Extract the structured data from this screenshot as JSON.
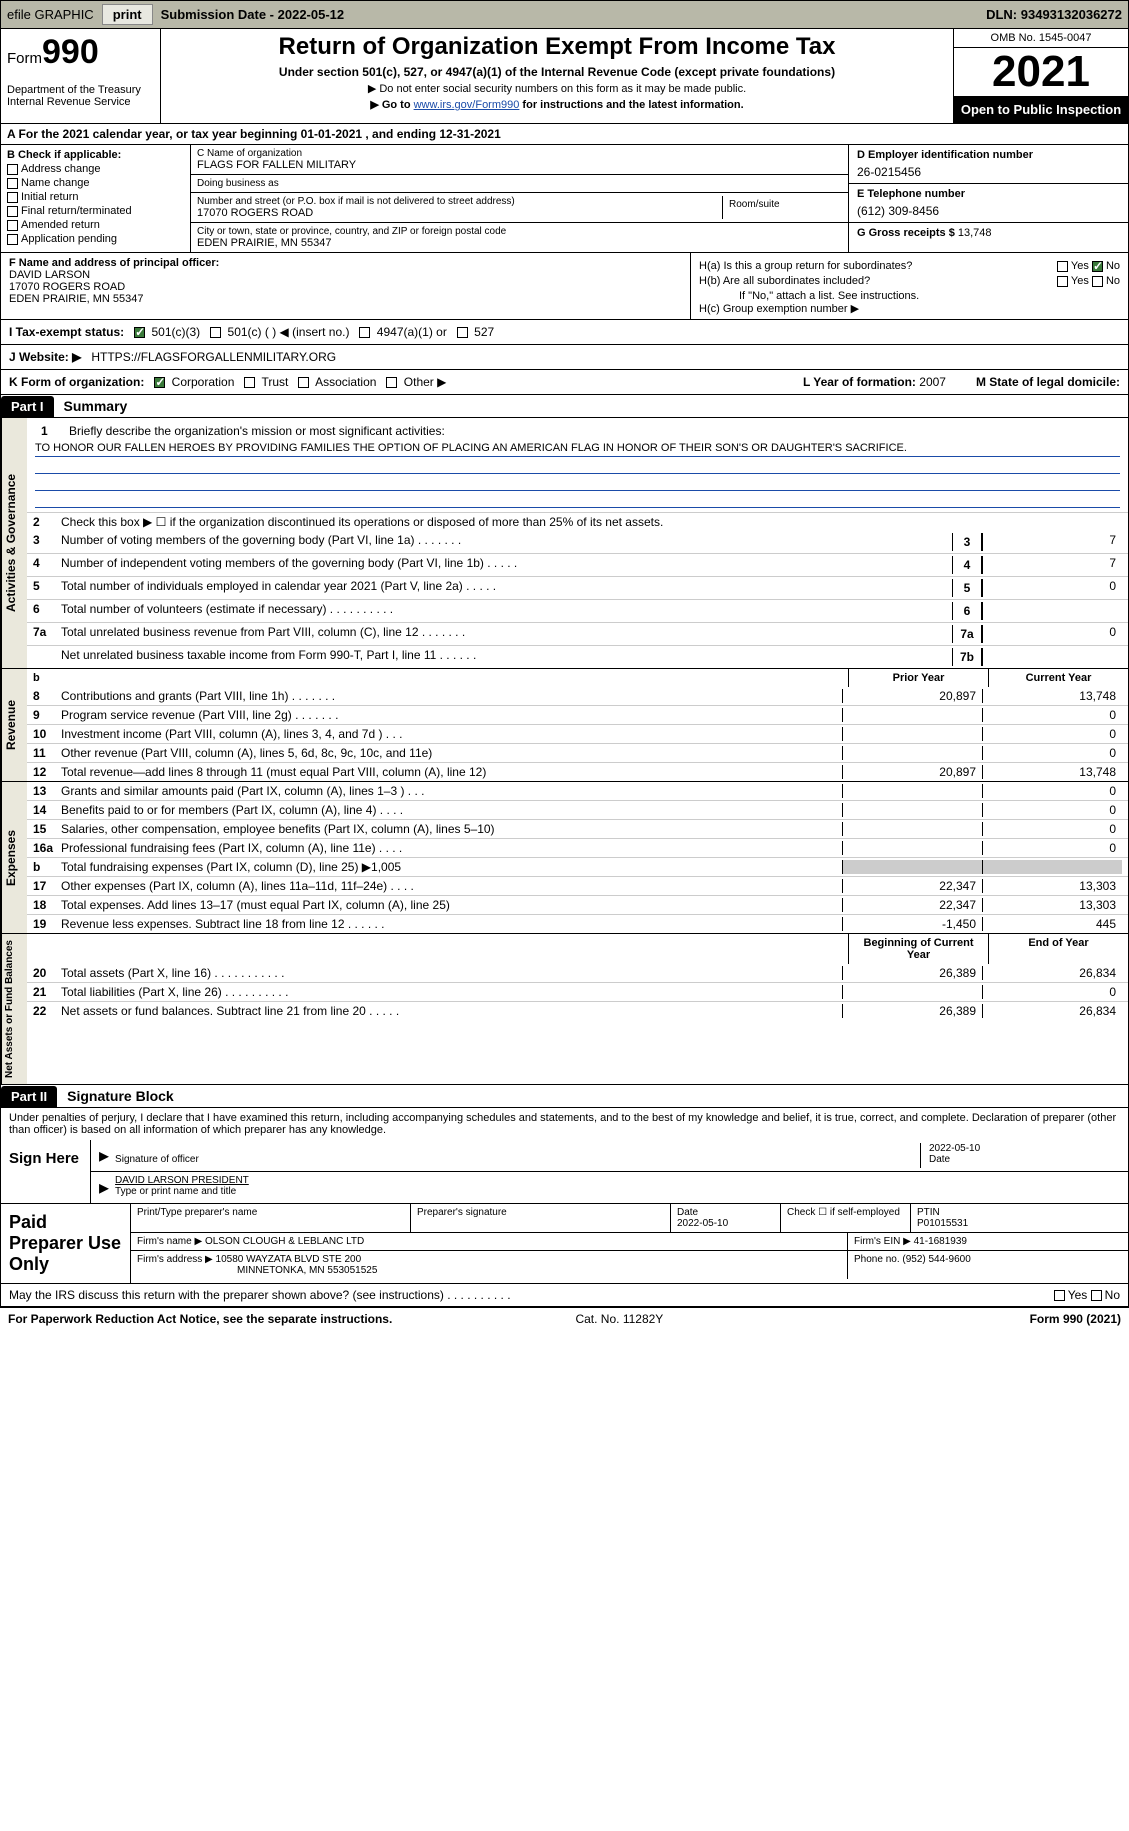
{
  "topbar": {
    "efile": "efile GRAPHIC",
    "print_btn": "print",
    "sub_date_lbl": "Submission Date - ",
    "sub_date": "2022-05-12",
    "dln_lbl": "DLN: ",
    "dln": "93493132036272"
  },
  "header": {
    "form_word": "Form",
    "form_num": "990",
    "dept": "Department of the Treasury\nInternal Revenue Service",
    "title": "Return of Organization Exempt From Income Tax",
    "subtitle": "Under section 501(c), 527, or 4947(a)(1) of the Internal Revenue Code (except private foundations)",
    "note1": "▶ Do not enter social security numbers on this form as it may be made public.",
    "note2_pre": "▶ Go to ",
    "note2_link": "www.irs.gov/Form990",
    "note2_post": " for instructions and the latest information.",
    "omb": "OMB No. 1545-0047",
    "year": "2021",
    "inspect": "Open to Public Inspection"
  },
  "row_a": "A For the 2021 calendar year, or tax year beginning 01-01-2021   , and ending 12-31-2021",
  "col_b": {
    "hdr": "B Check if applicable:",
    "opts": [
      "Address change",
      "Name change",
      "Initial return",
      "Final return/terminated",
      "Amended return",
      "Application pending"
    ]
  },
  "col_c": {
    "name_lbl": "C Name of organization",
    "name": "FLAGS FOR FALLEN MILITARY",
    "dba_lbl": "Doing business as",
    "dba": "",
    "addr_lbl": "Number and street (or P.O. box if mail is not delivered to street address)",
    "addr": "17070 ROGERS ROAD",
    "room_lbl": "Room/suite",
    "city_lbl": "City or town, state or province, country, and ZIP or foreign postal code",
    "city": "EDEN PRAIRIE, MN  55347"
  },
  "col_d": {
    "ein_lbl": "D Employer identification number",
    "ein": "26-0215456",
    "tel_lbl": "E Telephone number",
    "tel": "(612) 309-8456",
    "gross_lbl": "G Gross receipts $ ",
    "gross": "13,748"
  },
  "col_f": {
    "lbl": "F Name and address of principal officer:",
    "name": "DAVID LARSON",
    "addr1": "17070 ROGERS ROAD",
    "addr2": "EDEN PRAIRIE, MN  55347"
  },
  "col_h": {
    "ha": "H(a)  Is this a group return for subordinates?",
    "hb": "H(b)  Are all subordinates included?",
    "hb_note": "If \"No,\" attach a list. See instructions.",
    "hc": "H(c)  Group exemption number ▶",
    "yes": "Yes",
    "no": "No"
  },
  "row_i": {
    "lbl": "I   Tax-exempt status:",
    "o1": "501(c)(3)",
    "o2": "501(c) (  ) ◀ (insert no.)",
    "o3": "4947(a)(1) or",
    "o4": "527"
  },
  "row_j": {
    "lbl": "J   Website: ▶",
    "val": "HTTPS://FLAGSFORGALLENMILITARY.ORG"
  },
  "row_k": {
    "lbl": "K Form of organization:",
    "o1": "Corporation",
    "o2": "Trust",
    "o3": "Association",
    "o4": "Other ▶",
    "l_lbl": "L Year of formation: ",
    "l_val": "2007",
    "m_lbl": "M State of legal domicile:"
  },
  "part1": {
    "hdr": "Part I",
    "title": "Summary",
    "line1_lbl": "Briefly describe the organization's mission or most significant activities:",
    "line1_txt": "TO HONOR OUR FALLEN HEROES BY PROVIDING FAMILIES THE OPTION OF PLACING AN AMERICAN FLAG IN HONOR OF THEIR SON'S OR DAUGHTER'S SACRIFICE.",
    "line2": "Check this box ▶ ☐  if the organization discontinued its operations or disposed of more than 25% of its net assets.",
    "vlab_ag": "Activities & Governance",
    "vlab_rev": "Revenue",
    "vlab_exp": "Expenses",
    "vlab_net": "Net Assets or Fund Balances",
    "prior_hdr": "Prior Year",
    "curr_hdr": "Current Year",
    "boy_hdr": "Beginning of Current Year",
    "eoy_hdr": "End of Year",
    "lines_gov": [
      {
        "n": "3",
        "t": "Number of voting members of the governing body (Part VI, line 1a)   .    .    .    .    .    .    .",
        "b": "3",
        "v": "7"
      },
      {
        "n": "4",
        "t": "Number of independent voting members of the governing body (Part VI, line 1b)  .    .    .    .    .",
        "b": "4",
        "v": "7"
      },
      {
        "n": "5",
        "t": "Total number of individuals employed in calendar year 2021 (Part V, line 2a)  .    .    .    .    .",
        "b": "5",
        "v": "0"
      },
      {
        "n": "6",
        "t": "Total number of volunteers (estimate if necessary)    .    .    .    .    .    .    .    .    .    .",
        "b": "6",
        "v": ""
      },
      {
        "n": "7a",
        "t": "Total unrelated business revenue from Part VIII, column (C), line 12  .    .    .    .    .    .    .",
        "b": "7a",
        "v": "0"
      },
      {
        "n": "",
        "t": "Net unrelated business taxable income from Form 990-T, Part I, line 11  .    .    .    .    .    .",
        "b": "7b",
        "v": ""
      }
    ],
    "lines_rev": [
      {
        "n": "8",
        "t": "Contributions and grants (Part VIII, line 1h)   .    .    .    .    .    .    .",
        "p": "20,897",
        "c": "13,748"
      },
      {
        "n": "9",
        "t": "Program service revenue (Part VIII, line 2g)  .    .    .    .    .    .    .",
        "p": "",
        "c": "0"
      },
      {
        "n": "10",
        "t": "Investment income (Part VIII, column (A), lines 3, 4, and 7d )   .    .    .",
        "p": "",
        "c": "0"
      },
      {
        "n": "11",
        "t": "Other revenue (Part VIII, column (A), lines 5, 6d, 8c, 9c, 10c, and 11e)",
        "p": "",
        "c": "0"
      },
      {
        "n": "12",
        "t": "Total revenue—add lines 8 through 11 (must equal Part VIII, column (A), line 12)",
        "p": "20,897",
        "c": "13,748"
      }
    ],
    "lines_exp": [
      {
        "n": "13",
        "t": "Grants and similar amounts paid (Part IX, column (A), lines 1–3 )   .    .    .",
        "p": "",
        "c": "0"
      },
      {
        "n": "14",
        "t": "Benefits paid to or for members (Part IX, column (A), line 4)  .    .    .    .",
        "p": "",
        "c": "0"
      },
      {
        "n": "15",
        "t": "Salaries, other compensation, employee benefits (Part IX, column (A), lines 5–10)",
        "p": "",
        "c": "0"
      },
      {
        "n": "16a",
        "t": "Professional fundraising fees (Part IX, column (A), line 11e)   .    .    .    .",
        "p": "",
        "c": "0"
      },
      {
        "n": "b",
        "t": "Total fundraising expenses (Part IX, column (D), line 25) ▶1,005",
        "p": "shade",
        "c": "shade"
      },
      {
        "n": "17",
        "t": "Other expenses (Part IX, column (A), lines 11a–11d, 11f–24e)   .    .    .    .",
        "p": "22,347",
        "c": "13,303"
      },
      {
        "n": "18",
        "t": "Total expenses. Add lines 13–17 (must equal Part IX, column (A), line 25)",
        "p": "22,347",
        "c": "13,303"
      },
      {
        "n": "19",
        "t": "Revenue less expenses. Subtract line 18 from line 12  .    .    .    .    .    .",
        "p": "-1,450",
        "c": "445"
      }
    ],
    "lines_net": [
      {
        "n": "20",
        "t": "Total assets (Part X, line 16)  .    .    .    .    .    .    .    .    .    .    .",
        "p": "26,389",
        "c": "26,834"
      },
      {
        "n": "21",
        "t": "Total liabilities (Part X, line 26)  .    .    .    .    .    .    .    .    .    .",
        "p": "",
        "c": "0"
      },
      {
        "n": "22",
        "t": "Net assets or fund balances. Subtract line 21 from line 20   .    .    .    .    .",
        "p": "26,389",
        "c": "26,834"
      }
    ]
  },
  "part2": {
    "hdr": "Part II",
    "title": "Signature Block",
    "decl": "Under penalties of perjury, I declare that I have examined this return, including accompanying schedules and statements, and to the best of my knowledge and belief, it is true, correct, and complete. Declaration of preparer (other than officer) is based on all information of which preparer has any knowledge.",
    "sign_here": "Sign Here",
    "sig_officer_lbl": "Signature of officer",
    "sig_date": "2022-05-10",
    "date_lbl": "Date",
    "officer_name": "DAVID LARSON  PRESIDENT",
    "officer_name_lbl": "Type or print name and title",
    "paid_prep": "Paid Preparer Use Only",
    "prep_name_lbl": "Print/Type preparer's name",
    "prep_sig_lbl": "Preparer's signature",
    "prep_date_lbl": "Date",
    "prep_date": "2022-05-10",
    "self_emp": "Check ☐ if self-employed",
    "ptin_lbl": "PTIN",
    "ptin": "P01015531",
    "firm_name_lbl": "Firm's name    ▶ ",
    "firm_name": "OLSON CLOUGH & LEBLANC LTD",
    "firm_ein_lbl": "Firm's EIN ▶ ",
    "firm_ein": "41-1681939",
    "firm_addr_lbl": "Firm's address ▶ ",
    "firm_addr1": "10580 WAYZATA BLVD STE 200",
    "firm_addr2": "MINNETONKA, MN  553051525",
    "firm_phone_lbl": "Phone no. ",
    "firm_phone": "(952) 544-9600",
    "discuss": "May the IRS discuss this return with the preparer shown above? (see instructions)   .    .    .    .    .    .    .    .    .    .",
    "yes": "Yes",
    "no": "No"
  },
  "footer": {
    "pra": "For Paperwork Reduction Act Notice, see the separate instructions.",
    "cat": "Cat. No. 11282Y",
    "form": "Form 990 (2021)"
  }
}
